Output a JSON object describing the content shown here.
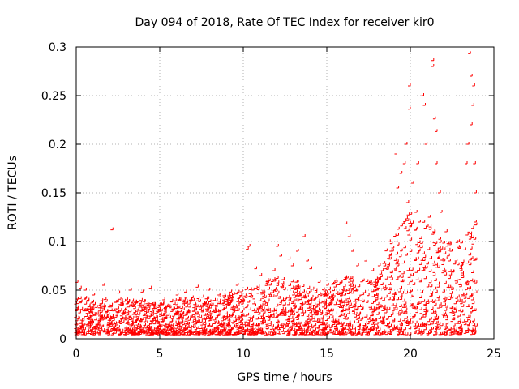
{
  "chart_data": {
    "type": "scatter",
    "title": "Day 094 of 2018, Rate Of TEC Index for receiver kir0",
    "xlabel": "GPS time / hours",
    "ylabel": "ROTI / TECUs",
    "xlim": [
      0,
      25
    ],
    "ylim": [
      0,
      0.3
    ],
    "xticks": [
      0,
      5,
      10,
      15,
      20,
      25
    ],
    "xtick_labels": [
      "0",
      "5",
      "10",
      "15",
      "20",
      "25"
    ],
    "yticks": [
      0,
      0.05,
      0.1,
      0.15,
      0.2,
      0.25,
      0.3
    ],
    "ytick_labels": [
      "0",
      "0.05",
      "0.1",
      "0.15",
      "0.2",
      "0.25",
      "0.3"
    ],
    "grid": true,
    "marker": "+",
    "color": "#ff0000",
    "series": [
      {
        "name": "ROTI",
        "points": [
          [
            2.2,
            0.112
          ],
          [
            0.1,
            0.058
          ],
          [
            0.3,
            0.052
          ],
          [
            0.6,
            0.05
          ],
          [
            1.1,
            0.045
          ],
          [
            1.7,
            0.055
          ],
          [
            2.6,
            0.047
          ],
          [
            3.3,
            0.05
          ],
          [
            4.0,
            0.048
          ],
          [
            4.5,
            0.052
          ],
          [
            5.3,
            0.04
          ],
          [
            6.1,
            0.045
          ],
          [
            6.6,
            0.048
          ],
          [
            7.3,
            0.053
          ],
          [
            8.0,
            0.05
          ],
          [
            8.6,
            0.045
          ],
          [
            9.3,
            0.048
          ],
          [
            9.7,
            0.055
          ],
          [
            10.3,
            0.092
          ],
          [
            10.4,
            0.095
          ],
          [
            10.8,
            0.072
          ],
          [
            11.1,
            0.065
          ],
          [
            11.5,
            0.06
          ],
          [
            11.9,
            0.07
          ],
          [
            12.1,
            0.095
          ],
          [
            12.3,
            0.085
          ],
          [
            12.8,
            0.082
          ],
          [
            13.0,
            0.075
          ],
          [
            13.3,
            0.09
          ],
          [
            13.7,
            0.105
          ],
          [
            13.9,
            0.08
          ],
          [
            14.1,
            0.072
          ],
          [
            14.6,
            0.058
          ],
          [
            15.1,
            0.055
          ],
          [
            15.6,
            0.06
          ],
          [
            16.2,
            0.118
          ],
          [
            16.4,
            0.105
          ],
          [
            16.6,
            0.09
          ],
          [
            16.9,
            0.075
          ],
          [
            17.4,
            0.08
          ],
          [
            17.8,
            0.07
          ],
          [
            18.2,
            0.075
          ],
          [
            18.6,
            0.072
          ],
          [
            18.9,
            0.09
          ],
          [
            19.2,
            0.19
          ],
          [
            19.3,
            0.155
          ],
          [
            19.5,
            0.17
          ],
          [
            19.7,
            0.18
          ],
          [
            19.8,
            0.2
          ],
          [
            19.9,
            0.14
          ],
          [
            20.0,
            0.26
          ],
          [
            20.0,
            0.236
          ],
          [
            20.2,
            0.16
          ],
          [
            20.4,
            0.13
          ],
          [
            20.5,
            0.18
          ],
          [
            20.6,
            0.12
          ],
          [
            20.8,
            0.25
          ],
          [
            20.9,
            0.24
          ],
          [
            21.0,
            0.2
          ],
          [
            21.2,
            0.125
          ],
          [
            21.4,
            0.286
          ],
          [
            21.4,
            0.28
          ],
          [
            21.5,
            0.226
          ],
          [
            21.6,
            0.213
          ],
          [
            21.6,
            0.18
          ],
          [
            21.8,
            0.15
          ],
          [
            21.9,
            0.13
          ],
          [
            22.2,
            0.11
          ],
          [
            22.5,
            0.09
          ],
          [
            22.8,
            0.08
          ],
          [
            23.1,
            0.07
          ],
          [
            23.4,
            0.18
          ],
          [
            23.5,
            0.2
          ],
          [
            23.6,
            0.293
          ],
          [
            23.7,
            0.27
          ],
          [
            23.7,
            0.22
          ],
          [
            23.8,
            0.24
          ],
          [
            23.85,
            0.26
          ],
          [
            23.9,
            0.18
          ],
          [
            23.95,
            0.15
          ],
          [
            23.95,
            0.12
          ]
        ],
        "envelope": {
          "description": "dense band of ROTI samples; upper estimate per hour (lower bound ~0.005)",
          "hours": [
            0,
            1,
            2,
            3,
            4,
            5,
            6,
            7,
            8,
            9,
            10,
            11,
            12,
            13,
            14,
            15,
            16,
            17,
            18,
            19,
            20,
            21,
            22,
            23,
            24
          ],
          "upper": [
            0.045,
            0.04,
            0.042,
            0.04,
            0.04,
            0.035,
            0.04,
            0.045,
            0.042,
            0.045,
            0.05,
            0.055,
            0.065,
            0.06,
            0.055,
            0.05,
            0.065,
            0.06,
            0.06,
            0.11,
            0.13,
            0.12,
            0.1,
            0.1,
            0.12
          ]
        }
      }
    ]
  }
}
